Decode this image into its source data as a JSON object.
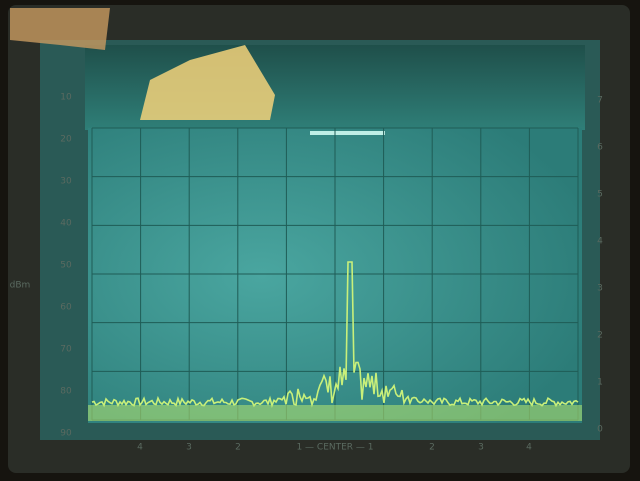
{
  "screen": {
    "left_scale": [
      "10",
      "20",
      "30",
      "40",
      "50",
      "60",
      "70",
      "80",
      "90"
    ],
    "left_unit": "dBm",
    "right_scale": [
      "7",
      "6",
      "5",
      "4",
      "3",
      "2",
      "1",
      "0"
    ],
    "bottom_scale": [
      "4",
      "3",
      "2",
      "1 — CENTER — 1",
      "2",
      "3",
      "4"
    ]
  }
}
